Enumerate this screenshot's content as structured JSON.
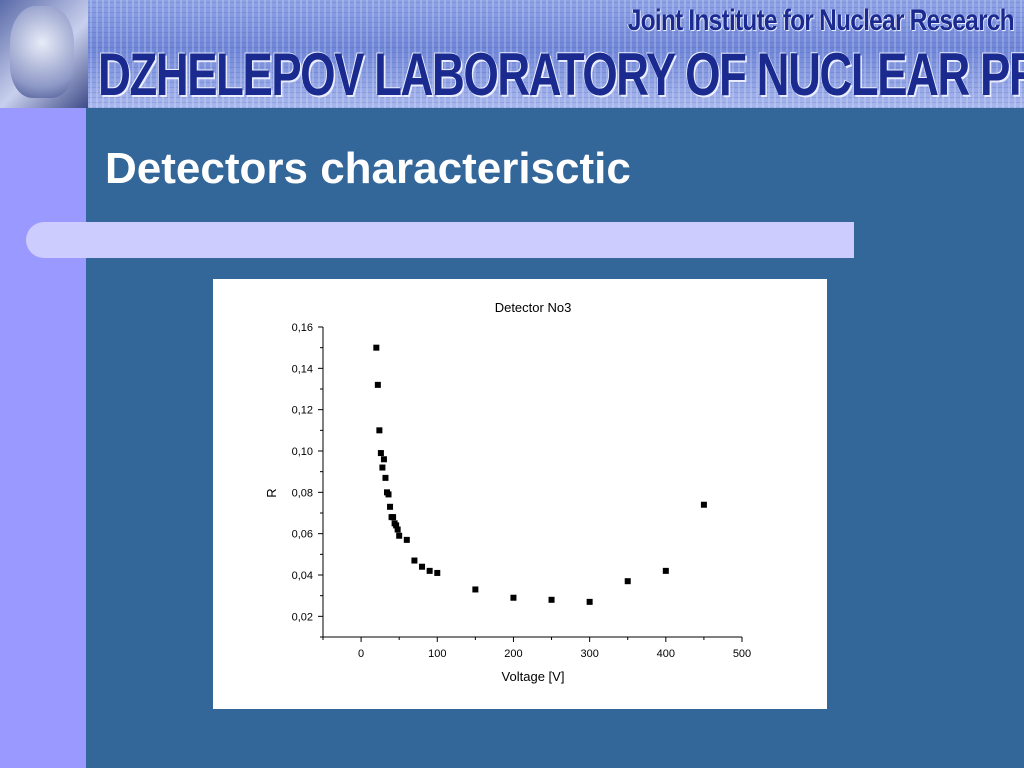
{
  "banner": {
    "subtitle": "Joint Institute for Nuclear Research",
    "title": "DZHELEPOV LABORATORY OF NUCLEAR PROBLEMS"
  },
  "slide": {
    "title": "Detectors characterisctic"
  },
  "colors": {
    "background": "#336699",
    "left_strip": "#9999ff",
    "title_bar": "#ccccff",
    "banner_text": "#1b2a8f"
  },
  "chart_data": {
    "type": "scatter",
    "title": "Detector No3",
    "xlabel": "Voltage [V]",
    "ylabel": "R",
    "xlim": [
      -50,
      500
    ],
    "ylim": [
      0.01,
      0.16
    ],
    "x_ticks": [
      0,
      100,
      200,
      300,
      400,
      500
    ],
    "x_tick_labels": [
      "0",
      "100",
      "200",
      "300",
      "400",
      "500"
    ],
    "y_ticks": [
      0.02,
      0.04,
      0.06,
      0.08,
      0.1,
      0.12,
      0.14,
      0.16
    ],
    "y_tick_labels": [
      "0,02",
      "0,04",
      "0,06",
      "0,08",
      "0,10",
      "0,12",
      "0,14",
      "0,16"
    ],
    "grid": false,
    "marker": "square",
    "series": [
      {
        "x": [
          20,
          22,
          24,
          26,
          28,
          30,
          32,
          34,
          36,
          38,
          40,
          42,
          44,
          46,
          48,
          50,
          60,
          70,
          80,
          90,
          100,
          150,
          200,
          250,
          300,
          350,
          400,
          450
        ],
        "y": [
          0.15,
          0.132,
          0.11,
          0.099,
          0.092,
          0.096,
          0.087,
          0.08,
          0.079,
          0.073,
          0.068,
          0.068,
          0.065,
          0.064,
          0.062,
          0.059,
          0.057,
          0.047,
          0.044,
          0.042,
          0.041,
          0.033,
          0.029,
          0.028,
          0.027,
          0.037,
          0.042,
          0.074
        ]
      }
    ]
  }
}
